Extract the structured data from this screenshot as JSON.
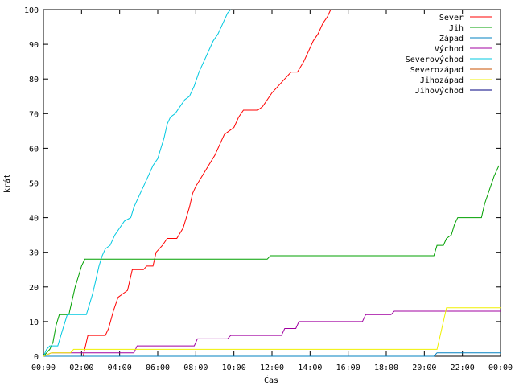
{
  "chart_data": {
    "type": "line",
    "xlabel": "Čas",
    "ylabel": "krát",
    "xlim": [
      "00:00",
      "24:00"
    ],
    "ylim": [
      0,
      100
    ],
    "grid": false,
    "legend_position": "top-right",
    "x_ticks": [
      "00:00",
      "02:00",
      "04:00",
      "06:00",
      "08:00",
      "10:00",
      "12:00",
      "14:00",
      "16:00",
      "18:00",
      "20:00",
      "22:00",
      "00:00"
    ],
    "y_ticks": [
      "0",
      "10",
      "20",
      "30",
      "40",
      "50",
      "60",
      "70",
      "80",
      "90",
      "100"
    ],
    "series": [
      {
        "name": "Sever",
        "color": "#ff0000",
        "points": [
          [
            "00:00",
            0
          ],
          [
            "02:05",
            0
          ],
          [
            "02:20",
            6
          ],
          [
            "03:15",
            6
          ],
          [
            "03:25",
            8
          ],
          [
            "03:40",
            13
          ],
          [
            "03:55",
            17
          ],
          [
            "04:10",
            18
          ],
          [
            "04:25",
            19
          ],
          [
            "04:40",
            25
          ],
          [
            "05:15",
            25
          ],
          [
            "05:25",
            26
          ],
          [
            "05:45",
            26
          ],
          [
            "05:55",
            30
          ],
          [
            "06:15",
            32
          ],
          [
            "06:30",
            34
          ],
          [
            "07:00",
            34
          ],
          [
            "07:20",
            37
          ],
          [
            "07:30",
            40
          ],
          [
            "07:40",
            43
          ],
          [
            "07:50",
            47
          ],
          [
            "08:00",
            49
          ],
          [
            "08:20",
            52
          ],
          [
            "08:40",
            55
          ],
          [
            "09:00",
            58
          ],
          [
            "09:15",
            61
          ],
          [
            "09:30",
            64
          ],
          [
            "09:45",
            65
          ],
          [
            "10:00",
            66
          ],
          [
            "10:15",
            69
          ],
          [
            "10:30",
            71
          ],
          [
            "10:45",
            71
          ],
          [
            "11:15",
            71
          ],
          [
            "11:30",
            72
          ],
          [
            "11:45",
            74
          ],
          [
            "12:00",
            76
          ],
          [
            "12:20",
            78
          ],
          [
            "12:40",
            80
          ],
          [
            "13:00",
            82
          ],
          [
            "13:20",
            82
          ],
          [
            "13:40",
            85
          ],
          [
            "13:55",
            88
          ],
          [
            "14:10",
            91
          ],
          [
            "14:25",
            93
          ],
          [
            "14:40",
            96
          ],
          [
            "14:55",
            98
          ],
          [
            "15:05",
            100
          ]
        ]
      },
      {
        "name": "Jih",
        "color": "#00a000",
        "points": [
          [
            "00:00",
            0
          ],
          [
            "00:20",
            2
          ],
          [
            "00:30",
            4
          ],
          [
            "00:40",
            9
          ],
          [
            "00:50",
            12
          ],
          [
            "01:20",
            12
          ],
          [
            "01:30",
            16
          ],
          [
            "01:40",
            20
          ],
          [
            "01:50",
            23
          ],
          [
            "02:00",
            26
          ],
          [
            "02:10",
            28
          ],
          [
            "11:45",
            28
          ],
          [
            "11:55",
            29
          ],
          [
            "20:30",
            29
          ],
          [
            "20:40",
            32
          ],
          [
            "21:00",
            32
          ],
          [
            "21:10",
            34
          ],
          [
            "21:25",
            35
          ],
          [
            "21:35",
            38
          ],
          [
            "21:45",
            40
          ],
          [
            "23:00",
            40
          ],
          [
            "23:10",
            44
          ],
          [
            "23:25",
            48
          ],
          [
            "23:40",
            52
          ],
          [
            "23:55",
            55
          ]
        ]
      },
      {
        "name": "Západ",
        "color": "#0080c0",
        "points": [
          [
            "00:00",
            0
          ],
          [
            "20:30",
            0
          ],
          [
            "20:40",
            1
          ],
          [
            "24:00",
            1
          ]
        ]
      },
      {
        "name": "Východ",
        "color": "#a000a0",
        "points": [
          [
            "00:00",
            0
          ],
          [
            "00:25",
            1
          ],
          [
            "04:45",
            1
          ],
          [
            "04:55",
            3
          ],
          [
            "07:55",
            3
          ],
          [
            "08:05",
            5
          ],
          [
            "09:40",
            5
          ],
          [
            "09:50",
            6
          ],
          [
            "12:30",
            6
          ],
          [
            "12:40",
            8
          ],
          [
            "13:15",
            8
          ],
          [
            "13:25",
            10
          ],
          [
            "16:45",
            10
          ],
          [
            "16:55",
            12
          ],
          [
            "18:15",
            12
          ],
          [
            "18:25",
            13
          ],
          [
            "24:00",
            13
          ]
        ]
      },
      {
        "name": "Severovýchod",
        "color": "#00c8e0",
        "points": [
          [
            "00:00",
            0
          ],
          [
            "00:10",
            2
          ],
          [
            "00:20",
            3
          ],
          [
            "00:45",
            3
          ],
          [
            "00:55",
            6
          ],
          [
            "01:05",
            9
          ],
          [
            "01:15",
            12
          ],
          [
            "02:15",
            12
          ],
          [
            "02:25",
            15
          ],
          [
            "02:35",
            18
          ],
          [
            "02:45",
            22
          ],
          [
            "02:55",
            26
          ],
          [
            "03:05",
            29
          ],
          [
            "03:15",
            31
          ],
          [
            "03:30",
            32
          ],
          [
            "03:45",
            35
          ],
          [
            "04:00",
            37
          ],
          [
            "04:15",
            39
          ],
          [
            "04:35",
            40
          ],
          [
            "04:45",
            43
          ],
          [
            "05:00",
            46
          ],
          [
            "05:15",
            49
          ],
          [
            "05:30",
            52
          ],
          [
            "05:45",
            55
          ],
          [
            "06:00",
            57
          ],
          [
            "06:10",
            60
          ],
          [
            "06:20",
            63
          ],
          [
            "06:30",
            67
          ],
          [
            "06:40",
            69
          ],
          [
            "06:55",
            70
          ],
          [
            "07:10",
            72
          ],
          [
            "07:25",
            74
          ],
          [
            "07:40",
            75
          ],
          [
            "07:55",
            78
          ],
          [
            "08:10",
            82
          ],
          [
            "08:25",
            85
          ],
          [
            "08:40",
            88
          ],
          [
            "08:55",
            91
          ],
          [
            "09:10",
            93
          ],
          [
            "09:25",
            96
          ],
          [
            "09:40",
            99
          ],
          [
            "09:50",
            100
          ]
        ]
      },
      {
        "name": "Severozápad",
        "color": "#c85000",
        "points": []
      },
      {
        "name": "Jihozápad",
        "color": "#f0f000",
        "points": [
          [
            "00:00",
            0
          ],
          [
            "00:25",
            1
          ],
          [
            "01:25",
            1
          ],
          [
            "01:35",
            2
          ],
          [
            "20:40",
            2
          ],
          [
            "20:50",
            6
          ],
          [
            "21:00",
            10
          ],
          [
            "21:10",
            14
          ],
          [
            "24:00",
            14
          ]
        ]
      },
      {
        "name": "Jihovýchod",
        "color": "#000080",
        "points": []
      }
    ]
  }
}
